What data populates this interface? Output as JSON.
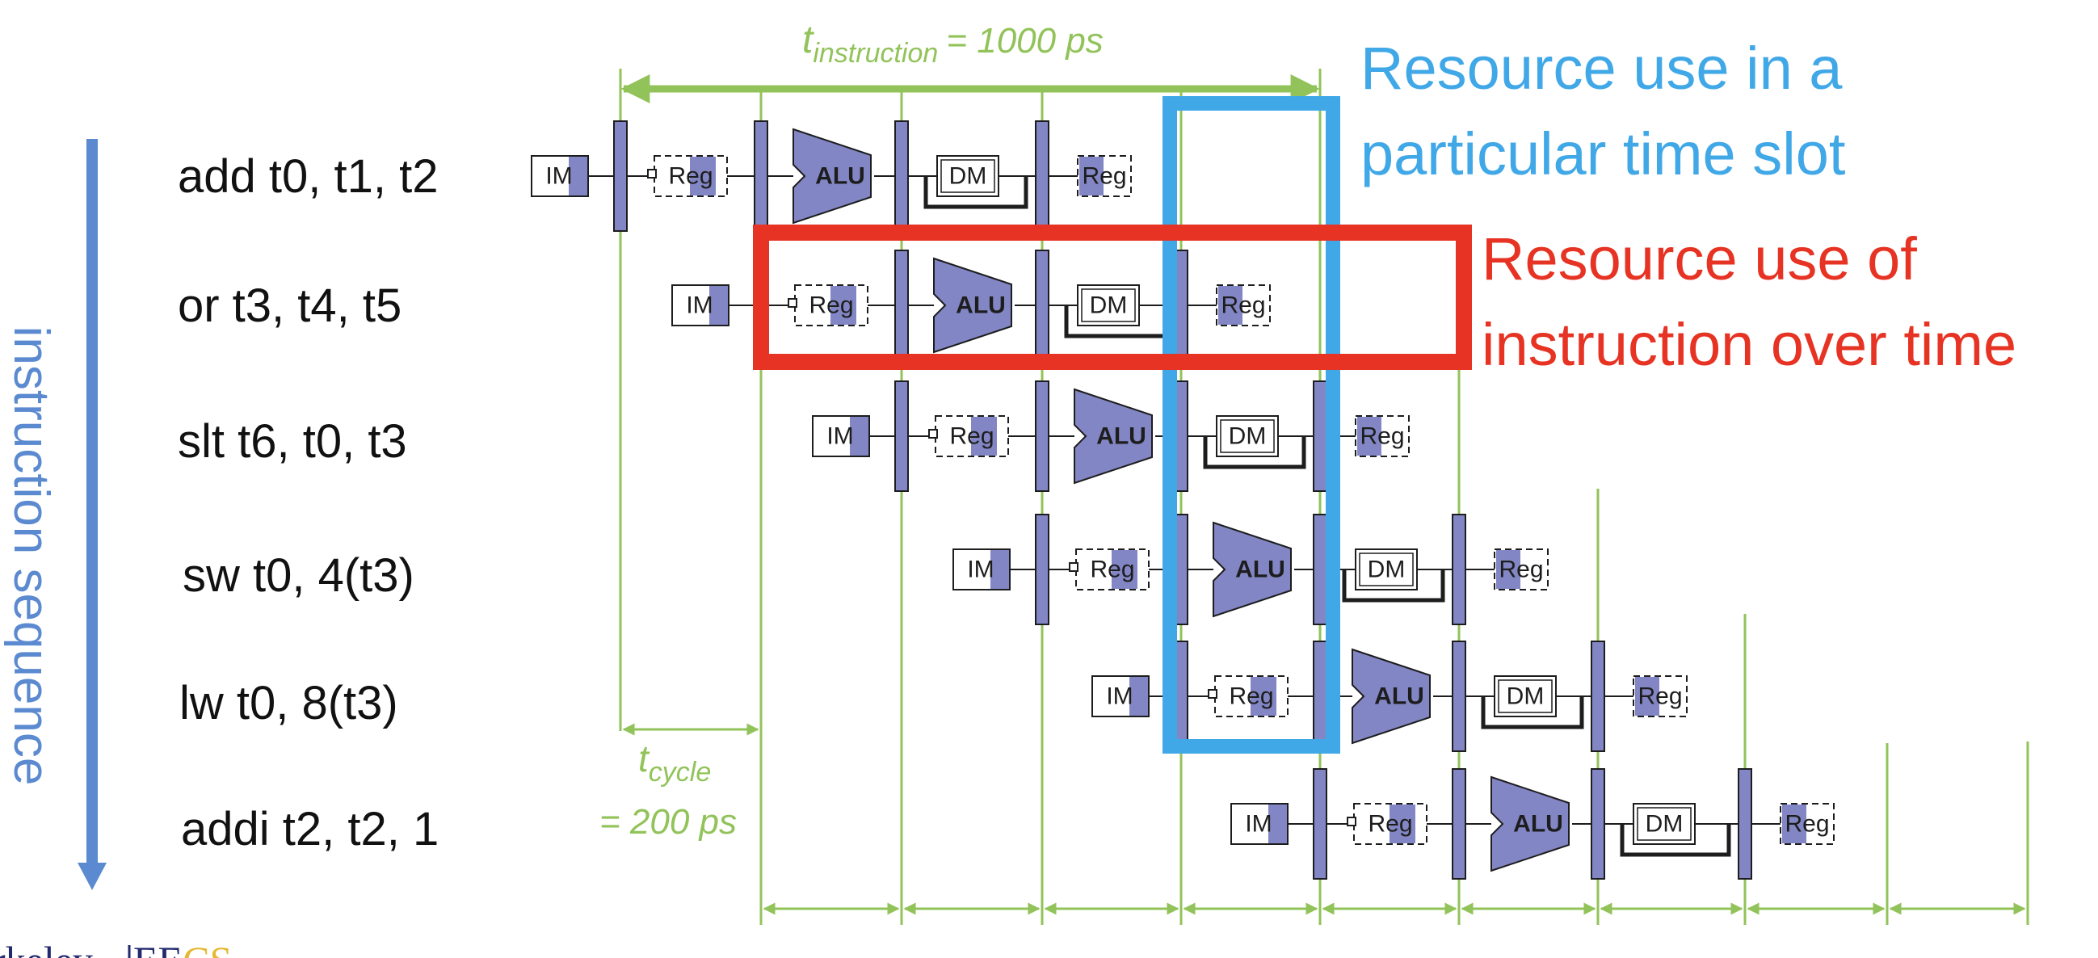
{
  "instruction_sequence_label": "instruction sequence",
  "instructions": [
    {
      "text": "add t0, t1, t2"
    },
    {
      "text": "or t3, t4, t5"
    },
    {
      "text": "slt t6, t0, t3"
    },
    {
      "text": "sw t0, 4(t3)"
    },
    {
      "text": "lw t0, 8(t3)"
    },
    {
      "text": "addi t2, t2, 1"
    }
  ],
  "stages": {
    "im": "IM",
    "reg": "Reg",
    "alu": "ALU",
    "dm": "DM"
  },
  "t_instruction": {
    "symbol": "t",
    "subscript": "instruction",
    "value": "= 1000 ps"
  },
  "t_cycle": {
    "symbol": "t",
    "subscript": "cycle",
    "value": "= 200 ps"
  },
  "highlight_time_slot": {
    "line1": "Resource use in a",
    "line2": "particular time slot"
  },
  "highlight_instruction": {
    "line1": "Resource use of",
    "line2": "instruction over time"
  },
  "logo": {
    "part1": "rkeley",
    "part2": "EE",
    "part3": "CS"
  },
  "colors": {
    "green": "#92c35a",
    "blue": "#41a8e8",
    "red": "#e63323",
    "unit_fill": "#8286c4",
    "arrow": "#5b8ad0"
  }
}
